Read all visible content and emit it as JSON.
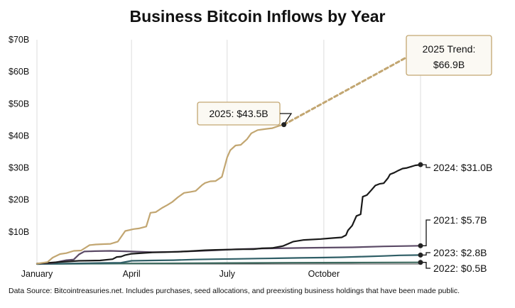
{
  "chart_data": {
    "type": "line",
    "title": "Business Bitcoin Inflows by Year",
    "footer": "Data Source: Bitcointreasuries.net. Includes purchases, seed allocations, and preexisting business holdings that have been made public.",
    "x_ticks": [
      "January",
      "April",
      "July",
      "October"
    ],
    "x_tick_days": [
      0,
      90,
      181,
      273
    ],
    "y_ticks": [
      "$70B",
      "$60B",
      "$50B",
      "$40B",
      "$30B",
      "$20B",
      "$10B"
    ],
    "y_tick_values": [
      70,
      60,
      50,
      40,
      30,
      20,
      10
    ],
    "xlim": [
      0,
      365
    ],
    "ylim": [
      0,
      70
    ],
    "grid": "vertical",
    "series": [
      {
        "name": "2025",
        "color": "#c2a671",
        "x": [
          0,
          10,
          15,
          22,
          28,
          35,
          42,
          50,
          56,
          63,
          70,
          77,
          84,
          92,
          97,
          104,
          108,
          113,
          119,
          124,
          129,
          134,
          140,
          146,
          151,
          157,
          160,
          165,
          170,
          176,
          178,
          181,
          184,
          189,
          194,
          200,
          204,
          210,
          217,
          224,
          231,
          235
        ],
        "values": [
          0.1,
          0.6,
          2.0,
          3.1,
          3.4,
          4.1,
          4.2,
          5.9,
          6.1,
          6.2,
          6.3,
          7.0,
          10.3,
          10.9,
          11.1,
          11.7,
          16.0,
          16.2,
          17.5,
          18.4,
          19.4,
          20.8,
          22.2,
          22.5,
          22.8,
          24.6,
          25.3,
          25.8,
          25.9,
          27.2,
          29.6,
          33.3,
          35.5,
          37.0,
          37.2,
          39.0,
          40.8,
          41.8,
          42.1,
          42.4,
          43.2,
          43.5
        ]
      },
      {
        "name": "2025 Trend",
        "color": "#c2a671",
        "dashed": true,
        "x": [
          235,
          365
        ],
        "values": [
          43.5,
          66.9
        ]
      },
      {
        "name": "2024",
        "color": "#1a1a1a",
        "x": [
          0,
          20,
          40,
          60,
          72,
          76,
          80,
          84,
          90,
          100,
          110,
          122,
          134,
          146,
          160,
          170,
          182,
          196,
          206,
          214,
          224,
          234,
          244,
          254,
          270,
          282,
          290,
          294,
          296,
          300,
          304,
          308,
          310,
          314,
          318,
          322,
          326,
          330,
          334,
          336,
          340,
          344,
          348,
          352,
          356,
          360,
          365
        ],
        "values": [
          0.1,
          0.6,
          1.0,
          1.1,
          1.5,
          2.2,
          2.3,
          2.8,
          3.2,
          3.4,
          3.6,
          3.7,
          3.8,
          4.0,
          4.3,
          4.4,
          4.5,
          4.6,
          4.6,
          4.9,
          5.0,
          5.6,
          7.0,
          7.5,
          7.8,
          8.1,
          8.3,
          9.0,
          10.5,
          12.0,
          15.0,
          15.5,
          21.0,
          21.5,
          23.0,
          24.5,
          25.0,
          25.2,
          26.8,
          28.0,
          28.5,
          29.2,
          29.8,
          30.0,
          30.4,
          30.8,
          31.0
        ]
      },
      {
        "name": "2021",
        "color": "#5b4a66",
        "x": [
          0,
          15,
          28,
          35,
          40,
          45,
          55,
          70,
          90,
          110,
          130,
          150,
          170,
          190,
          210,
          230,
          250,
          270,
          300,
          330,
          365
        ],
        "values": [
          0.1,
          0.3,
          1.2,
          1.4,
          3.0,
          3.9,
          4.0,
          4.1,
          3.9,
          3.7,
          3.8,
          4.0,
          4.3,
          4.6,
          4.8,
          4.9,
          5.0,
          5.1,
          5.2,
          5.5,
          5.7
        ]
      },
      {
        "name": "2023",
        "color": "#2f5e66",
        "x": [
          0,
          20,
          40,
          60,
          80,
          90,
          110,
          130,
          150,
          170,
          190,
          210,
          230,
          250,
          270,
          290,
          310,
          330,
          345,
          365
        ],
        "values": [
          0.0,
          0.1,
          0.2,
          0.3,
          0.4,
          1.0,
          1.1,
          1.2,
          1.4,
          1.5,
          1.6,
          1.7,
          1.8,
          1.9,
          2.0,
          2.1,
          2.3,
          2.5,
          2.7,
          2.8
        ]
      },
      {
        "name": "2022",
        "color": "#3d6a5f",
        "x": [
          0,
          60,
          120,
          180,
          240,
          300,
          365
        ],
        "values": [
          0.0,
          0.1,
          0.2,
          0.3,
          0.4,
          0.45,
          0.5
        ]
      }
    ],
    "annotations": [
      {
        "key": "ann2025",
        "line1": "2025: $43.5B",
        "style": "box",
        "x": 235,
        "y": 43.5
      },
      {
        "key": "annTrend",
        "line1": "2025 Trend:",
        "line2": "$66.9B",
        "style": "box",
        "x": 365,
        "y": 66.9
      },
      {
        "key": "ann2024",
        "line1": "2024: $31.0B",
        "style": "plain",
        "x": 365,
        "y": 31.0
      },
      {
        "key": "ann2021",
        "line1": "2021: $5.7B",
        "style": "plain",
        "x": 365,
        "y": 5.7
      },
      {
        "key": "ann2023",
        "line1": "2023: $2.8B",
        "style": "plain",
        "x": 365,
        "y": 2.8
      },
      {
        "key": "ann2022",
        "line1": "2022: $0.5B",
        "style": "plain",
        "x": 365,
        "y": 0.5
      }
    ]
  }
}
